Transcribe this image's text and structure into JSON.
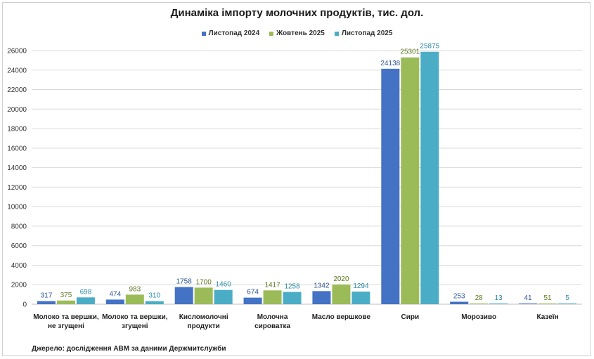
{
  "chart_data": {
    "type": "bar",
    "title": "Динаміка імпорту молочних продуктів, тис. дол.",
    "categories": [
      [
        "Молоко та вершки,",
        "не згущені"
      ],
      [
        "Молоко та вершки,",
        "згущені"
      ],
      [
        "Кисломолочні",
        "продукти"
      ],
      [
        "Молочна",
        "сироватка"
      ],
      [
        "Масло вершкове"
      ],
      [
        "Сири"
      ],
      [
        "Морозиво"
      ],
      [
        "Казеїн"
      ]
    ],
    "series": [
      {
        "name": "Листопад 2024",
        "color": "#4472C4",
        "label_color": "#2F5597",
        "values": [
          317,
          474,
          1758,
          674,
          1342,
          24138,
          253,
          41
        ]
      },
      {
        "name": "Жовтень 2025",
        "color": "#9BBB59",
        "label_color": "#5E7A20",
        "values": [
          375,
          983,
          1700,
          1417,
          2020,
          25301,
          28,
          51
        ]
      },
      {
        "name": "Листопад 2025",
        "color": "#4BACC6",
        "label_color": "#2E8BA6",
        "values": [
          698,
          310,
          1460,
          1258,
          1294,
          25875,
          13,
          5
        ]
      }
    ],
    "ylim": [
      0,
      26000
    ],
    "yticks": [
      0,
      2000,
      4000,
      6000,
      8000,
      10000,
      12000,
      14000,
      16000,
      18000,
      20000,
      22000,
      24000,
      26000
    ],
    "grid": true,
    "legend_position": "top-center",
    "xlabel": "",
    "ylabel": ""
  },
  "source_note": "Джерело: дослідження АВМ за даними Держмитслужби"
}
